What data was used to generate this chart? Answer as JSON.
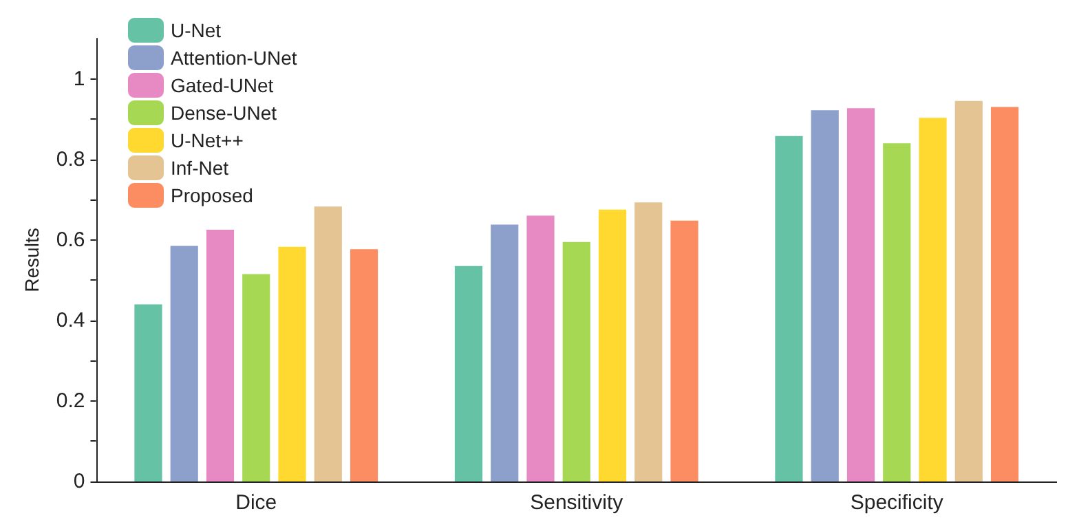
{
  "chart_data": {
    "type": "bar",
    "ylabel": "Results",
    "categories": [
      "Dice",
      "Sensitivity",
      "Specificity"
    ],
    "series": [
      {
        "name": "U-Net",
        "color": "#66c2a5",
        "values": [
          0.44,
          0.535,
          0.858
        ]
      },
      {
        "name": "Attention-UNet",
        "color": "#8da0cb",
        "values": [
          0.585,
          0.638,
          0.922
        ]
      },
      {
        "name": "Gated-UNet",
        "color": "#e78ac3",
        "values": [
          0.625,
          0.66,
          0.927
        ]
      },
      {
        "name": "Dense-UNet",
        "color": "#a6d854",
        "values": [
          0.515,
          0.595,
          0.84
        ]
      },
      {
        "name": "U-Net++",
        "color": "#ffd92f",
        "values": [
          0.583,
          0.675,
          0.903
        ]
      },
      {
        "name": "Inf-Net",
        "color": "#e5c494",
        "values": [
          0.683,
          0.693,
          0.945
        ]
      },
      {
        "name": "Proposed",
        "color": "#fc8d62",
        "values": [
          0.577,
          0.648,
          0.93
        ]
      }
    ],
    "ylim": [
      0,
      1.1
    ],
    "yticks": [
      0,
      {
        "value": 0.1,
        "label": null
      },
      0.2,
      {
        "value": 0.3,
        "label": null
      },
      0.4,
      {
        "value": 0.5,
        "label": null
      },
      0.6,
      {
        "value": 0.7,
        "label": null
      },
      0.8,
      {
        "value": 0.9,
        "label": null
      },
      1
    ],
    "grid": false,
    "legend": "top left"
  }
}
